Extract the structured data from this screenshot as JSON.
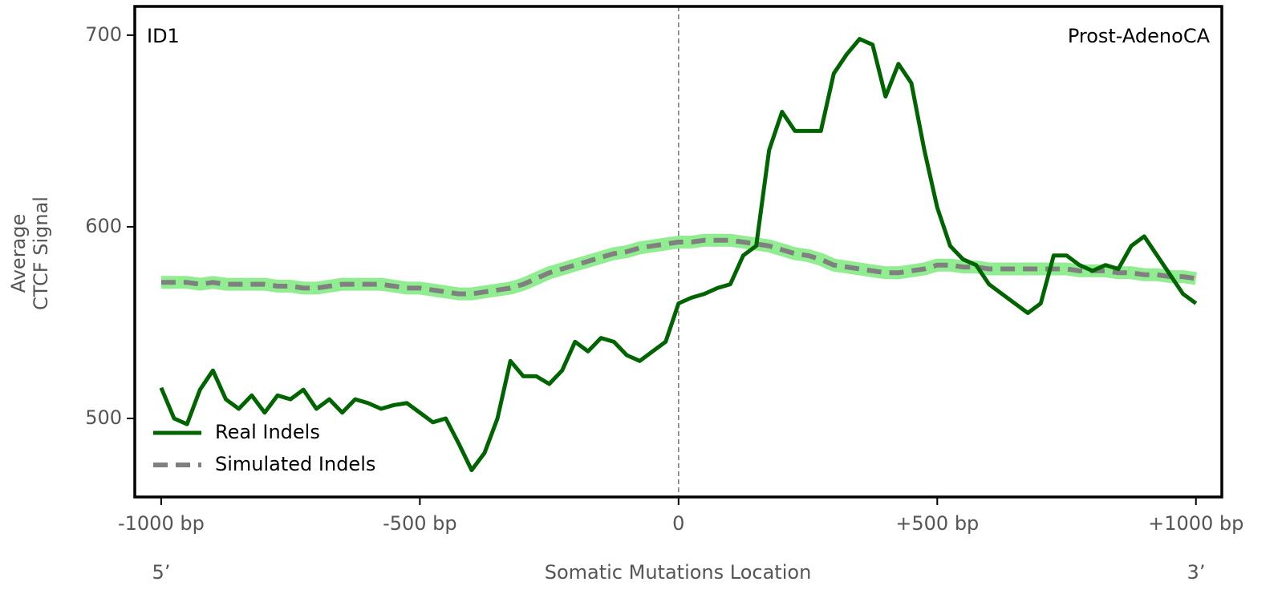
{
  "chart_data": {
    "type": "line",
    "corner_left": "ID1",
    "corner_right": "Prost-AdenoCA",
    "xlabel": "Somatic Mutations Location",
    "ylabel": [
      "Average",
      "CTCF Signal"
    ],
    "end_left": "5’",
    "end_right": "3’",
    "xlim": [
      -1051,
      1050
    ],
    "ylim": [
      459,
      715
    ],
    "xticks": [
      {
        "value": -1000,
        "label": "-1000 bp"
      },
      {
        "value": -500,
        "label": "-500 bp"
      },
      0,
      {
        "value": 500,
        "label": "+500 bp"
      },
      {
        "value": 1000,
        "label": "+1000 bp"
      }
    ],
    "yticks": [
      500,
      600,
      700
    ],
    "vline": 0,
    "legend": "lower left",
    "x": [
      -1000,
      -975,
      -950,
      -925,
      -900,
      -875,
      -850,
      -825,
      -800,
      -775,
      -750,
      -725,
      -700,
      -675,
      -650,
      -625,
      -600,
      -575,
      -550,
      -525,
      -500,
      -475,
      -450,
      -425,
      -400,
      -375,
      -350,
      -325,
      -300,
      -275,
      -250,
      -225,
      -200,
      -175,
      -150,
      -125,
      -100,
      -75,
      -50,
      -25,
      0,
      25,
      50,
      75,
      100,
      125,
      150,
      175,
      200,
      225,
      250,
      275,
      300,
      325,
      350,
      375,
      400,
      425,
      450,
      475,
      500,
      525,
      550,
      575,
      600,
      625,
      650,
      675,
      700,
      725,
      750,
      775,
      800,
      825,
      850,
      875,
      900,
      925,
      950,
      975,
      1000
    ],
    "series": [
      {
        "name": "Real Indels",
        "color": "#006400",
        "style": "solid",
        "values": [
          516,
          500,
          497,
          515,
          525,
          510,
          505,
          512,
          503,
          512,
          510,
          515,
          505,
          510,
          503,
          510,
          508,
          505,
          507,
          508,
          503,
          498,
          500,
          487,
          473,
          482,
          500,
          530,
          522,
          522,
          518,
          525,
          540,
          535,
          542,
          540,
          533,
          530,
          535,
          540,
          560,
          563,
          565,
          568,
          570,
          585,
          590,
          640,
          660,
          650,
          650,
          650,
          680,
          690,
          698,
          695,
          668,
          685,
          675,
          640,
          610,
          590,
          583,
          580,
          570,
          565,
          560,
          555,
          560,
          585,
          585,
          580,
          577,
          580,
          578,
          590,
          595,
          585,
          575,
          565,
          560
        ]
      },
      {
        "name": "Simulated Indels",
        "color": "#808080",
        "band_color": "#90ee90",
        "style": "dashed",
        "values": [
          571,
          571,
          571,
          570,
          571,
          570,
          570,
          570,
          570,
          569,
          569,
          568,
          568,
          569,
          570,
          570,
          570,
          570,
          569,
          568,
          568,
          567,
          566,
          565,
          565,
          566,
          567,
          568,
          570,
          573,
          576,
          578,
          580,
          582,
          584,
          586,
          587,
          589,
          590,
          591,
          592,
          592,
          593,
          593,
          593,
          592,
          591,
          590,
          588,
          586,
          585,
          583,
          580,
          579,
          578,
          577,
          576,
          576,
          577,
          578,
          580,
          580,
          579,
          579,
          578,
          578,
          578,
          578,
          578,
          578,
          578,
          577,
          577,
          577,
          576,
          576,
          575,
          575,
          574,
          574,
          573
        ]
      }
    ]
  }
}
